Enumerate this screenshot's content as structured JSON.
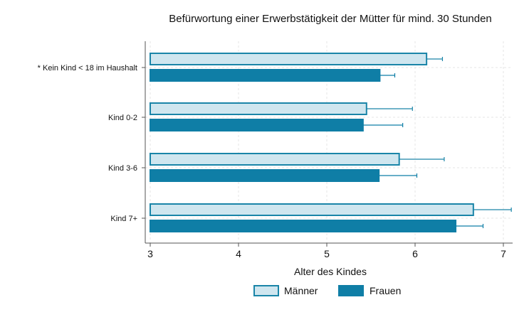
{
  "chart_data": {
    "type": "bar",
    "orientation": "horizontal",
    "title": "Befürwortung einer Erwerbstätigkeit der Mütter für mind. 30 Stunden",
    "xlabel": "Alter des Kindes",
    "ylabel": "",
    "xlim": [
      3,
      7.1
    ],
    "xticks": [
      3,
      4,
      5,
      6,
      7
    ],
    "grid": true,
    "legend_position": "bottom",
    "categories": [
      "* Kein Kind < 18 im Haushalt",
      "Kind 0-2",
      "Kind 3-6",
      "Kind 7+"
    ],
    "series": [
      {
        "name": "Männer",
        "values": [
          6.13,
          5.45,
          5.82,
          6.66
        ],
        "error_upper": [
          6.31,
          5.97,
          6.33,
          7.09
        ],
        "fill": "#cfe6ef",
        "stroke": "#1a85a8"
      },
      {
        "name": "Frauen",
        "values": [
          5.6,
          5.41,
          5.59,
          6.46
        ],
        "error_upper": [
          5.77,
          5.86,
          6.02,
          6.77
        ],
        "fill": "#0f7ea6",
        "stroke": "#0f7ea6"
      }
    ]
  }
}
